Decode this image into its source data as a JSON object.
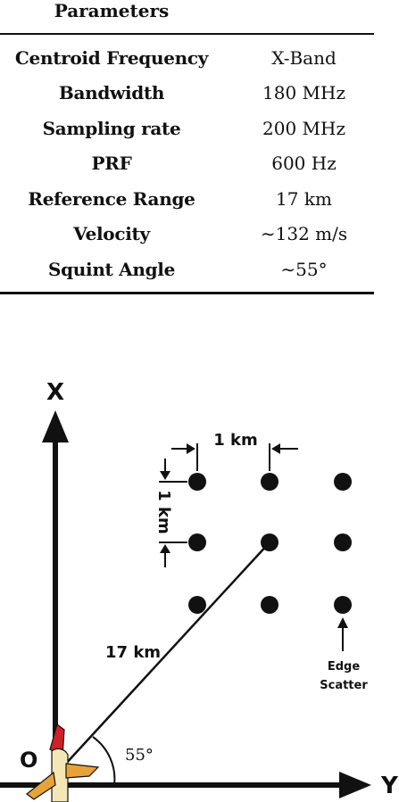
{
  "table": {
    "header": "Parameters",
    "rows": [
      {
        "name": "Centroid Frequency",
        "value": "X-Band"
      },
      {
        "name": "Bandwidth",
        "value": "180 MHz"
      },
      {
        "name": "Sampling rate",
        "value": "200 MHz"
      },
      {
        "name": "PRF",
        "value": "600 Hz"
      },
      {
        "name": "Reference Range",
        "value": "17 km"
      },
      {
        "name": "Velocity",
        "value": "∼132 m/s"
      },
      {
        "name": "Squint Angle",
        "value": "∼55°"
      }
    ]
  },
  "diagram": {
    "x_axis_label": "X",
    "y_axis_label": "Y",
    "origin_label": "O",
    "spacing_horizontal_label": "1 km",
    "spacing_vertical_label": "1 km",
    "range_label": "17 km",
    "angle_label": "55°",
    "edge_label_line1": "Edge",
    "edge_label_line2": "Scatter",
    "icons": [
      "airplane-icon"
    ],
    "colors": {
      "line": "#111111",
      "plane_red": "#d11f2a",
      "plane_body": "#f4e7b5"
    }
  }
}
